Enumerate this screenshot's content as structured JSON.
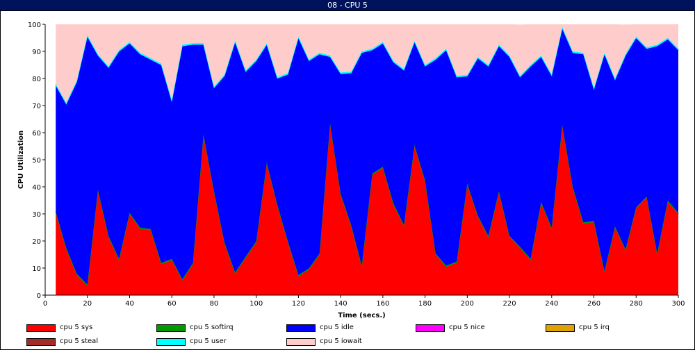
{
  "window": {
    "title": "08  -  CPU 5"
  },
  "chart_data": {
    "type": "area",
    "stacked": true,
    "title": "",
    "xlabel": "Time (secs.)",
    "ylabel": "CPU Utilization",
    "xlim": [
      0,
      300
    ],
    "ylim": [
      0,
      100
    ],
    "xticks": [
      0,
      20,
      40,
      60,
      80,
      100,
      120,
      140,
      160,
      180,
      200,
      220,
      240,
      260,
      280,
      300
    ],
    "yticks": [
      0,
      10,
      20,
      30,
      40,
      50,
      60,
      70,
      80,
      90,
      100
    ],
    "grid": false,
    "legend_position": "bottom",
    "x": [
      5,
      10,
      15,
      20,
      25,
      30,
      35,
      40,
      45,
      50,
      55,
      60,
      65,
      70,
      75,
      80,
      85,
      90,
      95,
      100,
      105,
      110,
      115,
      120,
      125,
      130,
      135,
      140,
      145,
      150,
      155,
      160,
      165,
      170,
      175,
      180,
      185,
      190,
      195,
      200,
      205,
      210,
      215,
      220,
      225,
      230,
      235,
      240,
      245,
      250,
      255,
      260,
      265,
      270,
      275,
      280,
      285,
      290,
      295,
      300
    ],
    "series": [
      {
        "name": "cpu 5 sys",
        "color": "#ff0000",
        "values": [
          30.5,
          17,
          7.5,
          3.5,
          38.5,
          21.5,
          13,
          30,
          24.5,
          24,
          11.5,
          13,
          5.5,
          11.5,
          59,
          38,
          19,
          8,
          13.8,
          19.5,
          48.5,
          33,
          19.5,
          7,
          9.5,
          15,
          63,
          37,
          25.5,
          10.5,
          44.5,
          47,
          33.5,
          25.5,
          55,
          42,
          15,
          10.5,
          12,
          40.8,
          29,
          21.5,
          38,
          21.5,
          17.5,
          13,
          34,
          24.5,
          62.5,
          39.5,
          26.5,
          27,
          8.5,
          25,
          16.5,
          32,
          36,
          15,
          34.5,
          30
        ]
      },
      {
        "name": "cpu 5 softirq",
        "color": "#009900",
        "values": [
          0.4,
          0.4,
          0.4,
          0.4,
          0.4,
          0.4,
          0.4,
          0.4,
          0.4,
          0.4,
          0.4,
          0.4,
          0.4,
          0.4,
          0.4,
          0.4,
          0.4,
          0.4,
          0.4,
          0.4,
          0.4,
          0.4,
          0.4,
          0.4,
          0.4,
          0.4,
          0.4,
          0.4,
          0.4,
          0.4,
          0.4,
          0.4,
          0.4,
          0.4,
          0.4,
          0.4,
          0.4,
          0.4,
          0.4,
          0.4,
          0.4,
          0.4,
          0.4,
          0.4,
          0.4,
          0.4,
          0.4,
          0.4,
          0.4,
          0.4,
          0.4,
          0.4,
          0.4,
          0.4,
          0.4,
          0.4,
          0.4,
          0.4,
          0.4,
          0.4
        ]
      },
      {
        "name": "cpu 5 idle",
        "color": "#0000ff",
        "values": [
          46.6,
          53.1,
          70.9,
          91.6,
          49.6,
          62.1,
          76.6,
          62.6,
          64.1,
          62.6,
          73.1,
          58.1,
          86.1,
          80.6,
          33.1,
          38.1,
          61.6,
          85.1,
          68.3,
          66.6,
          43.6,
          46.6,
          61.6,
          87.6,
          76.6,
          73.6,
          24.6,
          44.3,
          56.1,
          78.6,
          45.6,
          45.6,
          52.1,
          57.1,
          38.1,
          42.1,
          71.6,
          79.6,
          68.1,
          39.6,
          58.1,
          62.6,
          53.6,
          66.1,
          62.6,
          71.1,
          53.6,
          56.1,
          35.6,
          49.6,
          62.1,
          48.6,
          80.1,
          54.1,
          71.6,
          62.6,
          54.6,
          76.6,
          59.6,
          60.1
        ]
      },
      {
        "name": "cpu 5 nice",
        "color": "#ff00ff",
        "values": [
          0,
          0,
          0,
          0,
          0,
          0,
          0,
          0,
          0,
          0,
          0,
          0,
          0,
          0,
          0,
          0,
          0,
          0,
          0,
          0,
          0,
          0,
          0,
          0,
          0,
          0,
          0,
          0,
          0,
          0,
          0,
          0,
          0,
          0,
          0,
          0,
          0,
          0,
          0,
          0,
          0,
          0,
          0,
          0,
          0,
          0,
          0,
          0,
          0,
          0,
          0,
          0,
          0,
          0,
          0,
          0,
          0,
          0,
          0,
          0
        ]
      },
      {
        "name": "cpu 5 irq",
        "color": "#e0a000",
        "values": [
          0,
          0,
          0,
          0,
          0,
          0,
          0,
          0,
          0,
          0,
          0,
          0,
          0,
          0,
          0,
          0,
          0,
          0,
          0,
          0,
          0,
          0,
          0,
          0,
          0,
          0,
          0,
          0,
          0,
          0,
          0,
          0,
          0,
          0,
          0,
          0,
          0,
          0,
          0,
          0,
          0,
          0,
          0,
          0,
          0,
          0,
          0,
          0,
          0,
          0,
          0,
          0,
          0,
          0,
          0,
          0,
          0,
          0,
          0,
          0
        ]
      },
      {
        "name": "cpu 5 steal",
        "color": "#a52a2a",
        "values": [
          0,
          0,
          0,
          0,
          0,
          0,
          0,
          0,
          0,
          0,
          0,
          0,
          0,
          0,
          0,
          0,
          0,
          0,
          0,
          0,
          0,
          0,
          0,
          0,
          0,
          0,
          0,
          0,
          0,
          0,
          0,
          0,
          0,
          0,
          0,
          0,
          0,
          0,
          0,
          0,
          0,
          0,
          0,
          0,
          0,
          0,
          0,
          0,
          0,
          0,
          0,
          0,
          0,
          0,
          0,
          0,
          0,
          0,
          0,
          0
        ]
      },
      {
        "name": "cpu 5 user",
        "color": "#00ffff",
        "values": [
          0.5,
          0.5,
          0.5,
          0.5,
          0.5,
          0.5,
          0.5,
          0.5,
          0.5,
          0.5,
          0.5,
          0.5,
          0.5,
          0.5,
          0.5,
          0.5,
          0.5,
          0.5,
          0.5,
          0.5,
          0.5,
          0.5,
          0.5,
          0.5,
          0.5,
          0.5,
          0.5,
          0.5,
          0.5,
          0.5,
          0.5,
          0.5,
          0.5,
          0.5,
          0.5,
          0.5,
          0.5,
          0.5,
          0.5,
          0.5,
          0.5,
          0.5,
          0.5,
          0.5,
          0.5,
          0.5,
          0.5,
          0.5,
          0.5,
          0.5,
          0.5,
          0.5,
          0.5,
          0.5,
          0.5,
          0.5,
          0.5,
          0.5,
          0.5,
          0.5
        ]
      },
      {
        "name": "cpu 5 iowait",
        "color": "#ffcccc",
        "values": [
          22,
          29,
          20.7,
          4,
          11,
          15.5,
          9.5,
          6.5,
          10.5,
          12.5,
          14.5,
          28,
          7.5,
          7,
          7,
          23,
          18.5,
          6,
          17,
          13,
          7,
          19.5,
          18,
          4.5,
          13,
          10.5,
          11.5,
          17.8,
          17.5,
          10,
          9,
          6.5,
          13.5,
          16.5,
          6,
          15,
          12.5,
          9,
          19,
          18.7,
          12,
          15,
          7.5,
          11.5,
          18.9,
          15,
          11.5,
          18.5,
          1,
          10,
          10.5,
          23.5,
          10.5,
          20,
          10.9,
          4.5,
          8.5,
          7.5,
          5,
          9
        ]
      }
    ]
  }
}
